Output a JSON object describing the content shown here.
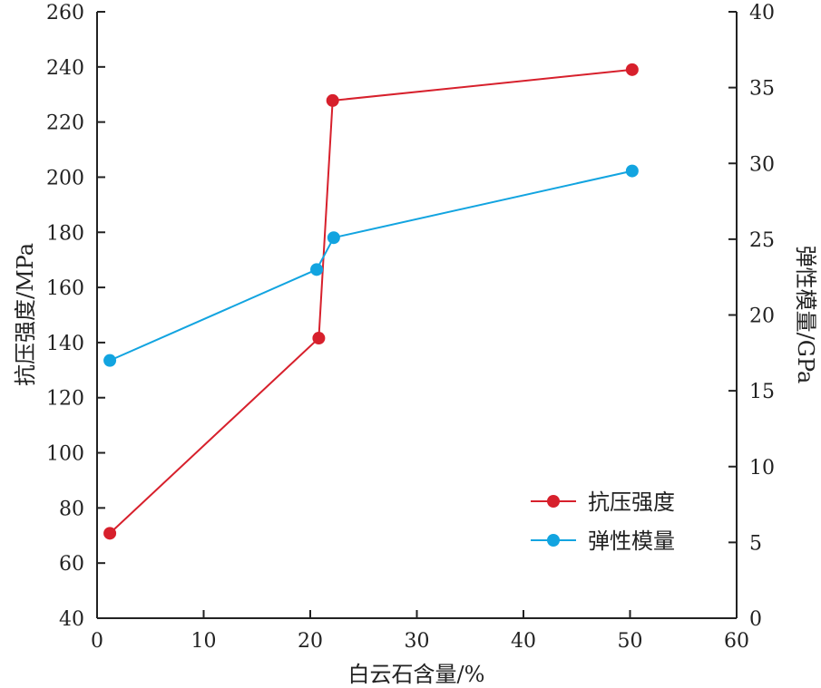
{
  "chart_data": {
    "type": "line",
    "xlabel": "白云石含量/%",
    "ylabel_left": "抗压强度/MPa",
    "ylabel_right": "弹性模量/GPa",
    "xlim": [
      0,
      60
    ],
    "ylim_left": [
      40,
      260
    ],
    "ylim_right": [
      0,
      40
    ],
    "xticks": [
      0,
      10,
      20,
      30,
      40,
      50,
      60
    ],
    "yticks_left": [
      40,
      60,
      80,
      100,
      120,
      140,
      160,
      180,
      200,
      220,
      240,
      260
    ],
    "yticks_right": [
      0,
      5,
      10,
      15,
      20,
      25,
      30,
      35,
      40
    ],
    "legend_position": "lower-right",
    "series": [
      {
        "name": "抗压强度",
        "axis": "left",
        "color": "#d7202c",
        "x": [
          1.2,
          20.8,
          22.1,
          50.2
        ],
        "y": [
          70.8,
          141.6,
          227.8,
          239.0
        ]
      },
      {
        "name": "弹性模量",
        "axis": "right",
        "color": "#12a4e0",
        "x": [
          1.2,
          20.6,
          22.2,
          50.2
        ],
        "y": [
          17.0,
          23.0,
          25.1,
          29.5
        ]
      }
    ]
  }
}
